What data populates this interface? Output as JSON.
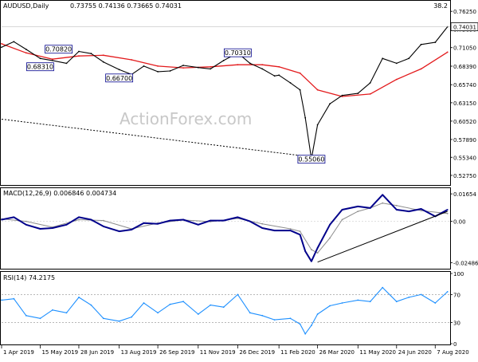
{
  "header": {
    "symbol_tf": "AUDUSD,Daily",
    "ohlc": "0.73755 0.74136 0.73665 0.74031",
    "topright_value": "38.2"
  },
  "watermark": "ActionForex.com",
  "colors": {
    "price_line": "#000000",
    "ma": "#e31a1c",
    "macd": "#00008b",
    "signal": "#8c8c8c",
    "rsi": "#1e90ff",
    "trendline": "#000000",
    "box_border": "#00008b",
    "label_box_bg": "#ffffff"
  },
  "chart_data": [
    {
      "type": "line",
      "title": "AUDUSD,Daily",
      "yrange": [
        0.516,
        0.765
      ],
      "yticks": [
        "0.76250",
        "0.73690",
        "0.71050",
        "0.68390",
        "0.65740",
        "0.63150",
        "0.60520",
        "0.57890",
        "0.55340",
        "0.52750"
      ],
      "current_price_label": "0.74031",
      "x_tick_labels": [
        "1 Apr 2019",
        "15 May 2019",
        "28 Jun 2019",
        "13 Aug 2019",
        "26 Sep 2019",
        "11 Nov 2019",
        "26 Dec 2019",
        "11 Feb 2020",
        "26 Mar 2020",
        "11 May 2020",
        "24 Jun 2020",
        "7 Aug 2020"
      ],
      "series": [
        {
          "name": "",
          "kind": "price",
          "x": [
            "1 Apr 2019",
            "15 Apr 2019",
            "29 Apr 2019",
            "15 May 2019",
            "29 May 2019",
            "14 Jun 2019",
            "28 Jun 2019",
            "12 Jul 2019",
            "26 Jul 2019",
            "13 Aug 2019",
            "27 Aug 2019",
            "10 Sep 2019",
            "26 Sep 2019",
            "10 Oct 2019",
            "25 Oct 2019",
            "11 Nov 2019",
            "25 Nov 2019",
            "10 Dec 2019",
            "26 Dec 2019",
            "9 Jan 2020",
            "23 Jan 2020",
            "6 Feb 2020",
            "11 Feb 2020",
            "24 Feb 2020",
            "6 Mar 2020",
            "12 Mar 2020",
            "19 Mar 2020",
            "26 Mar 2020",
            "9 Apr 2020",
            "23 Apr 2020",
            "11 May 2020",
            "25 May 2020",
            "8 Jun 2020",
            "24 Jun 2020",
            "8 Jul 2020",
            "22 Jul 2020",
            "7 Aug 2020",
            "21 Aug 2020"
          ],
          "values": [
            0.711,
            0.719,
            0.708,
            0.695,
            0.692,
            0.688,
            0.705,
            0.702,
            0.69,
            0.679,
            0.672,
            0.684,
            0.676,
            0.677,
            0.685,
            0.682,
            0.68,
            0.692,
            0.703,
            0.688,
            0.68,
            0.67,
            0.671,
            0.66,
            0.65,
            0.61,
            0.551,
            0.6,
            0.63,
            0.642,
            0.645,
            0.66,
            0.695,
            0.688,
            0.695,
            0.715,
            0.718,
            0.7403
          ]
        },
        {
          "name": "",
          "kind": "moving_average",
          "x": [
            "1 Apr 2019",
            "29 Apr 2019",
            "29 May 2019",
            "28 Jun 2019",
            "26 Jul 2019",
            "27 Aug 2019",
            "26 Sep 2019",
            "25 Oct 2019",
            "25 Nov 2019",
            "26 Dec 2019",
            "23 Jan 2020",
            "11 Feb 2020",
            "6 Mar 2020",
            "26 Mar 2020",
            "23 Apr 2020",
            "25 May 2020",
            "24 Jun 2020",
            "22 Jul 2020",
            "21 Aug 2020"
          ],
          "values": [
            0.716,
            0.703,
            0.694,
            0.6985,
            0.6995,
            0.693,
            0.684,
            0.6815,
            0.683,
            0.686,
            0.686,
            0.683,
            0.674,
            0.65,
            0.6405,
            0.644,
            0.665,
            0.68,
            0.704
          ]
        }
      ],
      "annotations": [
        {
          "text": "0.70820",
          "at": "5 Jun 2019",
          "value": 0.7082
        },
        {
          "text": "0.68310",
          "at": "15 May 2019",
          "value": 0.6831
        },
        {
          "text": "0.66700",
          "at": "13 Aug 2019",
          "value": 0.667
        },
        {
          "text": "0.70310",
          "at": "26 Dec 2019",
          "value": 0.7031
        },
        {
          "text": "0.55060",
          "at": "19 Mar 2020",
          "value": 0.5506
        }
      ],
      "trendline": {
        "from": {
          "x": "1 Apr 2019",
          "y": 0.608
        },
        "to": {
          "x": "19 Mar 2020",
          "y": 0.554
        },
        "style": "dashed"
      }
    },
    {
      "type": "line",
      "title": "MACD(12,26,9) 0.006846 0.004734",
      "yrange": [
        -0.028,
        0.019
      ],
      "yticks": [
        "0.01654",
        "0.00",
        "-0.02486"
      ],
      "series": [
        {
          "name": "MACD",
          "x": [
            "1 Apr 2019",
            "15 Apr 2019",
            "29 Apr 2019",
            "15 May 2019",
            "29 May 2019",
            "14 Jun 2019",
            "28 Jun 2019",
            "12 Jul 2019",
            "26 Jul 2019",
            "13 Aug 2019",
            "27 Aug 2019",
            "10 Sep 2019",
            "26 Sep 2019",
            "10 Oct 2019",
            "25 Oct 2019",
            "11 Nov 2019",
            "25 Nov 2019",
            "10 Dec 2019",
            "26 Dec 2019",
            "9 Jan 2020",
            "23 Jan 2020",
            "6 Feb 2020",
            "24 Feb 2020",
            "6 Mar 2020",
            "12 Mar 2020",
            "19 Mar 2020",
            "26 Mar 2020",
            "9 Apr 2020",
            "23 Apr 2020",
            "11 May 2020",
            "25 May 2020",
            "8 Jun 2020",
            "24 Jun 2020",
            "8 Jul 2020",
            "22 Jul 2020",
            "7 Aug 2020",
            "21 Aug 2020"
          ],
          "values": [
            0.001,
            0.0025,
            -0.002,
            -0.0045,
            -0.004,
            -0.002,
            0.0025,
            0.001,
            -0.003,
            -0.006,
            -0.005,
            -0.001,
            -0.0015,
            0.0005,
            0.001,
            -0.002,
            0.0005,
            0.0005,
            0.0025,
            0.0,
            -0.004,
            -0.0055,
            -0.0055,
            -0.008,
            -0.018,
            -0.024,
            -0.016,
            -0.002,
            0.007,
            0.009,
            0.008,
            0.016,
            0.007,
            0.006,
            0.0075,
            0.003,
            0.007
          ]
        },
        {
          "name": "Signal",
          "x": [
            "1 Apr 2019",
            "29 Apr 2019",
            "29 May 2019",
            "28 Jun 2019",
            "26 Jul 2019",
            "27 Aug 2019",
            "26 Sep 2019",
            "25 Oct 2019",
            "25 Nov 2019",
            "26 Dec 2019",
            "23 Jan 2020",
            "24 Feb 2020",
            "6 Mar 2020",
            "19 Mar 2020",
            "26 Mar 2020",
            "9 Apr 2020",
            "23 Apr 2020",
            "11 May 2020",
            "25 May 2020",
            "8 Jun 2020",
            "24 Jun 2020",
            "22 Jul 2020",
            "21 Aug 2020"
          ],
          "values": [
            0.0015,
            0.0,
            -0.0035,
            0.001,
            0.0005,
            -0.0045,
            -0.001,
            0.0008,
            -0.0002,
            0.0018,
            -0.0015,
            -0.0045,
            -0.006,
            -0.017,
            -0.019,
            -0.01,
            0.001,
            0.006,
            0.008,
            0.011,
            0.0095,
            0.0065,
            0.0047
          ]
        }
      ],
      "trendline": {
        "from": {
          "x": "26 Mar 2020",
          "y": -0.0245
        },
        "to": {
          "x": "21 Aug 2020",
          "y": 0.006
        },
        "style": "solid"
      }
    },
    {
      "type": "line",
      "title": "RSI(14) 74.2175",
      "yrange": [
        0,
        100
      ],
      "yticks": [
        "100",
        "70",
        "30",
        "0"
      ],
      "levels": [
        70,
        30
      ],
      "series": [
        {
          "name": "",
          "x": [
            "1 Apr 2019",
            "15 Apr 2019",
            "29 Apr 2019",
            "15 May 2019",
            "29 May 2019",
            "14 Jun 2019",
            "28 Jun 2019",
            "12 Jul 2019",
            "26 Jul 2019",
            "13 Aug 2019",
            "27 Aug 2019",
            "10 Sep 2019",
            "26 Sep 2019",
            "10 Oct 2019",
            "25 Oct 2019",
            "11 Nov 2019",
            "25 Nov 2019",
            "10 Dec 2019",
            "26 Dec 2019",
            "9 Jan 2020",
            "23 Jan 2020",
            "6 Feb 2020",
            "24 Feb 2020",
            "6 Mar 2020",
            "12 Mar 2020",
            "19 Mar 2020",
            "26 Mar 2020",
            "9 Apr 2020",
            "23 Apr 2020",
            "11 May 2020",
            "25 May 2020",
            "8 Jun 2020",
            "24 Jun 2020",
            "8 Jul 2020",
            "22 Jul 2020",
            "7 Aug 2020",
            "21 Aug 2020"
          ],
          "values": [
            62,
            64,
            40,
            36,
            48,
            44,
            66,
            55,
            36,
            32,
            38,
            58,
            44,
            56,
            60,
            42,
            55,
            52,
            70,
            44,
            40,
            34,
            36,
            28,
            14,
            26,
            42,
            54,
            58,
            62,
            60,
            80,
            60,
            66,
            70,
            58,
            74
          ]
        }
      ]
    }
  ]
}
